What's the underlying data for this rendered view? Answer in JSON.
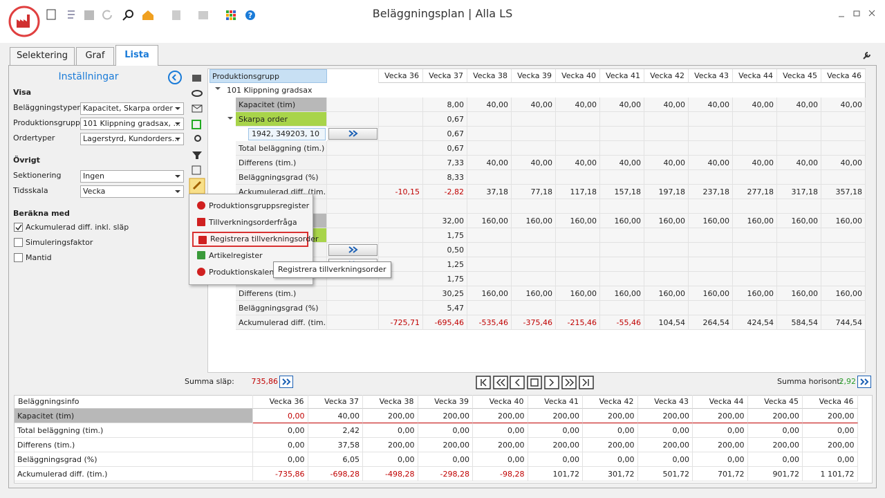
{
  "window": {
    "title": "Beläggningsplan | Alla LS"
  },
  "tabs": [
    "Selektering",
    "Graf",
    "Lista"
  ],
  "settings": {
    "title": "Inställningar",
    "sections": [
      {
        "heading": "Visa",
        "fields": [
          {
            "label": "Beläggningstyper",
            "value": "Kapacitet, Skarpa order"
          },
          {
            "label": "Produktionsgrupper",
            "value": "101  Klippning gradsax, ..."
          },
          {
            "label": "Ordertyper",
            "value": "Lagerstyrd, Kundorders..."
          }
        ]
      },
      {
        "heading": "Övrigt",
        "fields": [
          {
            "label": "Sektionering",
            "value": "Ingen"
          },
          {
            "label": "Tidsskala",
            "value": "Vecka"
          }
        ]
      }
    ],
    "calc": {
      "heading": "Beräkna med",
      "options": [
        {
          "label": "Ackumulerad diff. inkl. släp",
          "checked": true
        },
        {
          "label": "Simuleringsfaktor",
          "checked": false
        },
        {
          "label": "Mantid",
          "checked": false
        }
      ]
    }
  },
  "grid": {
    "header": "Produktionsgrupp",
    "weeks": [
      "Vecka 36",
      "Vecka 37",
      "Vecka 38",
      "Vecka 39",
      "Vecka 40",
      "Vecka 41",
      "Vecka 42",
      "Vecka 43",
      "Vecka 44",
      "Vecka 45",
      "Vecka 46"
    ],
    "rows": [
      {
        "label": "101 Klippning gradsax",
        "values": [
          null,
          null,
          null,
          null,
          null,
          null,
          null,
          null,
          null,
          null,
          null
        ]
      },
      {
        "label": "Kapacitet (tim)",
        "values": [
          null,
          "8,00",
          "40,00",
          "40,00",
          "40,00",
          "40,00",
          "40,00",
          "40,00",
          "40,00",
          "40,00",
          "40,00"
        ]
      },
      {
        "label": "Skarpa order",
        "values": [
          null,
          "0,67",
          null,
          null,
          null,
          null,
          null,
          null,
          null,
          null,
          null
        ]
      },
      {
        "label": "1942, 349203, 10",
        "values": [
          null,
          "0,67",
          null,
          null,
          null,
          null,
          null,
          null,
          null,
          null,
          null
        ]
      },
      {
        "label": "Total beläggning (tim.)",
        "values": [
          null,
          "0,67",
          null,
          null,
          null,
          null,
          null,
          null,
          null,
          null,
          null
        ]
      },
      {
        "label": "Differens (tim.)",
        "values": [
          null,
          "7,33",
          "40,00",
          "40,00",
          "40,00",
          "40,00",
          "40,00",
          "40,00",
          "40,00",
          "40,00",
          "40,00"
        ]
      },
      {
        "label": "Beläggningsgrad (%)",
        "values": [
          null,
          "8,33",
          null,
          null,
          null,
          null,
          null,
          null,
          null,
          null,
          null
        ]
      },
      {
        "label": "Ackumulerad diff. (tim.)",
        "values": [
          "-10,15",
          "-2,82",
          "37,18",
          "77,18",
          "117,18",
          "157,18",
          "197,18",
          "237,18",
          "277,18",
          "317,18",
          "357,18"
        ]
      },
      {
        "label": null,
        "values": [
          null,
          null,
          null,
          null,
          null,
          null,
          null,
          null,
          null,
          null,
          null
        ]
      },
      {
        "label": null,
        "values": [
          null,
          "32,00",
          "160,00",
          "160,00",
          "160,00",
          "160,00",
          "160,00",
          "160,00",
          "160,00",
          "160,00",
          "160,00"
        ]
      },
      {
        "label": null,
        "values": [
          null,
          "1,75",
          null,
          null,
          null,
          null,
          null,
          null,
          null,
          null,
          null
        ]
      },
      {
        "label": null,
        "values": [
          null,
          "0,50",
          null,
          null,
          null,
          null,
          null,
          null,
          null,
          null,
          null
        ]
      },
      {
        "label": null,
        "values": [
          null,
          "1,25",
          null,
          null,
          null,
          null,
          null,
          null,
          null,
          null,
          null
        ]
      },
      {
        "label": null,
        "values": [
          null,
          "1,75",
          null,
          null,
          null,
          null,
          null,
          null,
          null,
          null,
          null
        ]
      },
      {
        "label": "Differens (tim.)",
        "values": [
          null,
          "30,25",
          "160,00",
          "160,00",
          "160,00",
          "160,00",
          "160,00",
          "160,00",
          "160,00",
          "160,00",
          "160,00"
        ]
      },
      {
        "label": "Beläggningsgrad (%)",
        "values": [
          null,
          "5,47",
          null,
          null,
          null,
          null,
          null,
          null,
          null,
          null,
          null
        ]
      },
      {
        "label": "Ackumulerad diff. (tim.)",
        "values": [
          "-725,71",
          "-695,46",
          "-535,46",
          "-375,46",
          "-215,46",
          "-55,46",
          "104,54",
          "264,54",
          "424,54",
          "584,54",
          "744,54"
        ]
      }
    ]
  },
  "context_menu": [
    "Produktionsgruppsregister",
    "Tillverkningsorderfråga",
    "Registrera tillverkningsorder",
    "Artikelregister",
    "Produktionskalende"
  ],
  "tooltip": "Registrera tillverkningsorder",
  "footer": {
    "left_label": "Summa släp:",
    "left_value": "735,86",
    "right_label": "Summa horisont:",
    "right_value": "2,92"
  },
  "summary": {
    "header": "Beläggningsinfo",
    "weeks": [
      "Vecka 36",
      "Vecka 37",
      "Vecka 38",
      "Vecka 39",
      "Vecka 40",
      "Vecka 41",
      "Vecka 42",
      "Vecka 43",
      "Vecka 44",
      "Vecka 45",
      "Vecka 46"
    ],
    "rows": [
      {
        "label": "Kapacitet (tim)",
        "values": [
          "0,00",
          "40,00",
          "200,00",
          "200,00",
          "200,00",
          "200,00",
          "200,00",
          "200,00",
          "200,00",
          "200,00",
          "200,00"
        ]
      },
      {
        "label": "Total beläggning (tim.)",
        "values": [
          "0,00",
          "2,42",
          "0,00",
          "0,00",
          "0,00",
          "0,00",
          "0,00",
          "0,00",
          "0,00",
          "0,00",
          "0,00"
        ]
      },
      {
        "label": "Differens (tim.)",
        "values": [
          "0,00",
          "37,58",
          "200,00",
          "200,00",
          "200,00",
          "200,00",
          "200,00",
          "200,00",
          "200,00",
          "200,00",
          "200,00"
        ]
      },
      {
        "label": "Beläggningsgrad (%)",
        "values": [
          "0,00",
          "6,05",
          "0,00",
          "0,00",
          "0,00",
          "0,00",
          "0,00",
          "0,00",
          "0,00",
          "0,00",
          "0,00"
        ]
      },
      {
        "label": "Ackumulerad diff. (tim.)",
        "values": [
          "-735,86",
          "-698,28",
          "-498,28",
          "-298,28",
          "-98,28",
          "101,72",
          "301,72",
          "501,72",
          "701,72",
          "901,72",
          "1 101,72"
        ]
      }
    ]
  }
}
